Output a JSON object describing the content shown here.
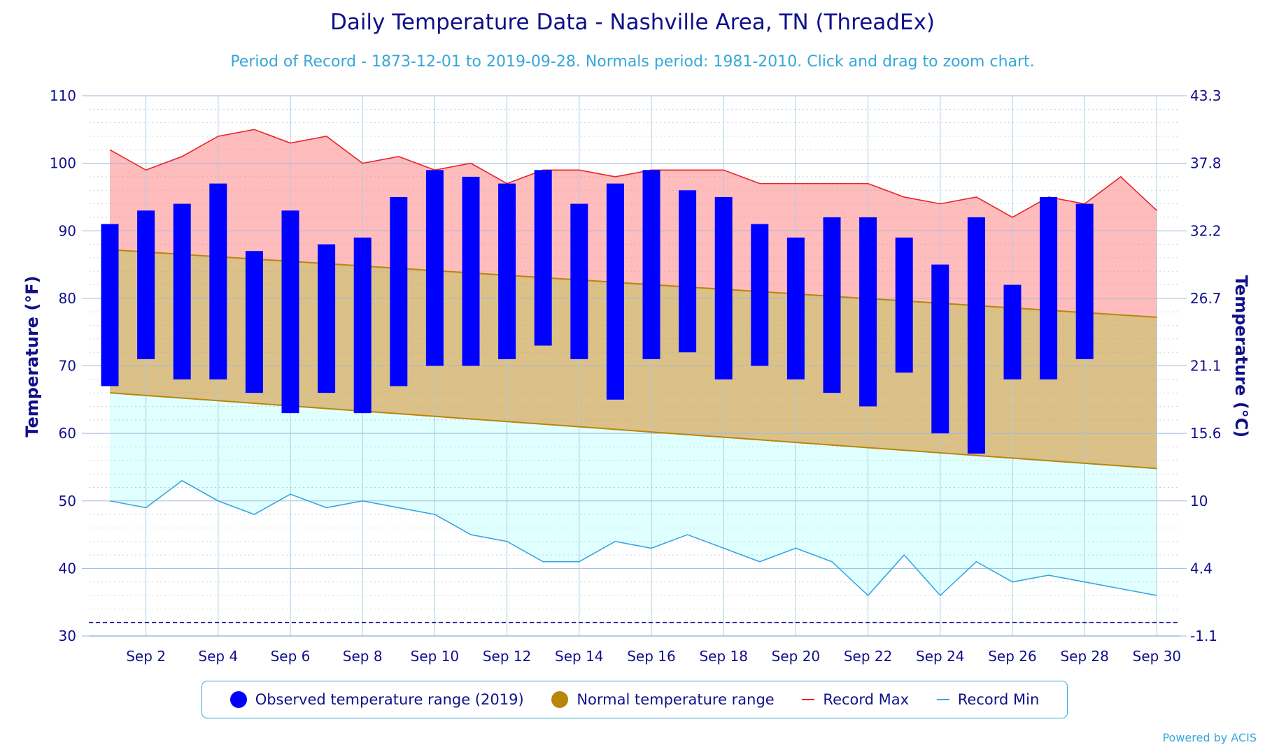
{
  "title": "Daily Temperature Data - Nashville Area, TN (ThreadEx)",
  "subtitle": "Period of Record - 1873-12-01 to 2019-09-28. Normals period: 1981-2010. Click and drag to zoom chart.",
  "credit": "Powered by ACIS",
  "colors": {
    "observed": "#0000ff",
    "normal": "#b8860b",
    "normal_fill": "#dbc187",
    "record_max": "#e8252a",
    "record_max_fill": "#ffbcbc",
    "record_min": "#36a7e0",
    "record_min_fill": "#e0ffff",
    "text": "#10108a"
  },
  "legend": {
    "observed": "Observed temperature range (2019)",
    "normal": "Normal temperature range",
    "record_max": "Record Max",
    "record_min": "Record Min"
  },
  "chart_data": {
    "type": "bar",
    "title": "Daily Temperature Data - Nashville Area, TN (ThreadEx)",
    "ylabel": "Temperature (°F)",
    "ylabel_right": "Temperature (°C)",
    "ylim": [
      30,
      110
    ],
    "yticks": [
      30,
      40,
      50,
      60,
      70,
      80,
      90,
      100,
      110
    ],
    "yticks_right": [
      "-1.1",
      "4.4",
      "10",
      "15.6",
      "21.1",
      "26.7",
      "32.2",
      "37.8",
      "43.3"
    ],
    "xtick_labels": [
      "Sep 2",
      "Sep 4",
      "Sep 6",
      "Sep 8",
      "Sep 10",
      "Sep 12",
      "Sep 14",
      "Sep 16",
      "Sep 18",
      "Sep 20",
      "Sep 22",
      "Sep 24",
      "Sep 26",
      "Sep 28",
      "Sep 30"
    ],
    "days": [
      1,
      2,
      3,
      4,
      5,
      6,
      7,
      8,
      9,
      10,
      11,
      12,
      13,
      14,
      15,
      16,
      17,
      18,
      19,
      20,
      21,
      22,
      23,
      24,
      25,
      26,
      27,
      28,
      29,
      30
    ],
    "freezing_line": 32,
    "grid": true,
    "legend_position": "bottom",
    "series": [
      {
        "name": "Observed temperature range (2019)",
        "days": [
          1,
          2,
          3,
          4,
          5,
          6,
          7,
          8,
          9,
          10,
          11,
          12,
          13,
          14,
          15,
          16,
          17,
          18,
          19,
          20,
          21,
          22,
          23,
          24,
          25,
          26,
          27,
          28
        ],
        "low": [
          67,
          71,
          68,
          68,
          66,
          63,
          66,
          63,
          67,
          70,
          70,
          71,
          73,
          71,
          65,
          71,
          72,
          68,
          70,
          68,
          66,
          64,
          69,
          60,
          57,
          68,
          68,
          71
        ],
        "high": [
          91,
          93,
          94,
          97,
          87,
          93,
          88,
          89,
          95,
          99,
          98,
          97,
          99,
          94,
          97,
          99,
          96,
          95,
          91,
          89,
          92,
          92,
          89,
          85,
          92,
          82,
          95,
          94
        ]
      },
      {
        "name": "Normal temperature range",
        "low_start": 66,
        "low_end": 54.8,
        "high_start": 87.2,
        "high_end": 77.2
      },
      {
        "name": "Record Max",
        "values": [
          102,
          99,
          101,
          104,
          105,
          103,
          104,
          100,
          101,
          99,
          100,
          97,
          99,
          99,
          98,
          99,
          99,
          99,
          97,
          97,
          97,
          97,
          95,
          94,
          95,
          92,
          95,
          94,
          98,
          93
        ]
      },
      {
        "name": "Record Min",
        "values": [
          50,
          49,
          53,
          50,
          48,
          51,
          49,
          50,
          49,
          48,
          45,
          44,
          41,
          41,
          44,
          43,
          45,
          43,
          41,
          43,
          41,
          36,
          42,
          36,
          41,
          38,
          39,
          38,
          37,
          36
        ]
      }
    ]
  }
}
